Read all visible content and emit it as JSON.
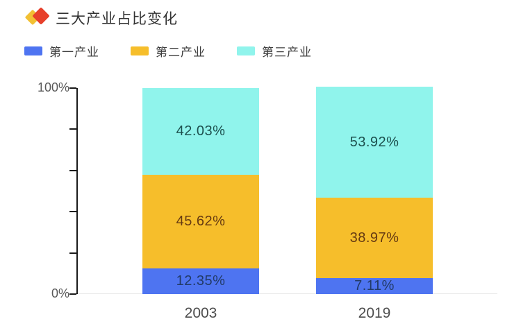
{
  "header": {
    "icon": "double-diamond-icon",
    "icon_colors": {
      "back": "#F2C033",
      "front": "#E7402B"
    }
  },
  "chart_data": {
    "type": "bar",
    "stacked": true,
    "title": "三大产业占比变化",
    "categories": [
      "2003",
      "2019"
    ],
    "series": [
      {
        "name": "第一产业",
        "color": "#4E74F1",
        "label_color": "#223a66",
        "values": [
          12.35,
          7.11
        ]
      },
      {
        "name": "第二产业",
        "color": "#F6BE2B",
        "label_color": "#653a12",
        "values": [
          45.62,
          38.97
        ]
      },
      {
        "name": "第三产业",
        "color": "#90F4EC",
        "label_color": "#1c4f4d",
        "values": [
          42.03,
          53.92
        ]
      }
    ],
    "value_suffix": "%",
    "ylim": [
      0,
      100
    ],
    "yticks": [
      0,
      20,
      40,
      60,
      80,
      100
    ],
    "ytick_labels_shown": [
      {
        "value": 100,
        "label": "100%"
      },
      {
        "value": 0,
        "label": "0%"
      }
    ],
    "legend_position": "top-left",
    "grid": false,
    "axis_color": "#1a1a1a",
    "baseline_color": "#e8e8e8",
    "ytick_label_color": "#595959",
    "xtick_label_color": "#4d4d4d"
  }
}
